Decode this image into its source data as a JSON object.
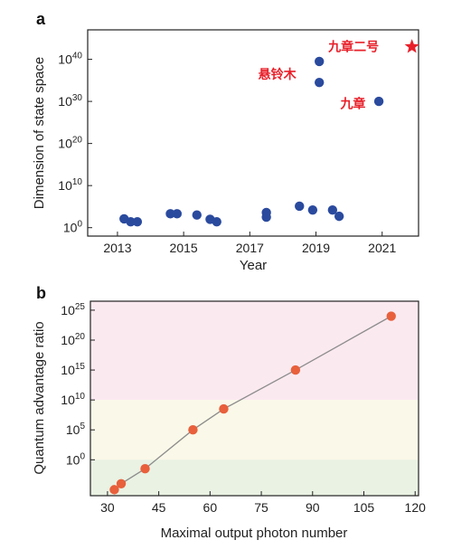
{
  "chart_data": [
    {
      "type": "scatter",
      "panel_label": "a",
      "title": "",
      "xlabel": "Year",
      "ylabel": "Dimension of state space",
      "ylog": true,
      "xlim": [
        2012.1,
        2022.1
      ],
      "ylim_exponent": [
        -2,
        47
      ],
      "xticks": [
        2013,
        2015,
        2017,
        2019,
        2021
      ],
      "yticks": [
        {
          "exp": 0,
          "label": "0"
        },
        {
          "exp": 10,
          "label": "10"
        },
        {
          "exp": 20,
          "label": "20"
        },
        {
          "exp": 30,
          "label": "30"
        },
        {
          "exp": 40,
          "label": "40"
        }
      ],
      "ytick_base": "10",
      "grid": false,
      "marker_color": "#2a4a9e",
      "points_log10": [
        [
          2013.2,
          2.1
        ],
        [
          2013.4,
          1.4
        ],
        [
          2013.6,
          1.4
        ],
        [
          2014.6,
          3.3
        ],
        [
          2014.8,
          3.3
        ],
        [
          2015.4,
          3.0
        ],
        [
          2015.8,
          2.0
        ],
        [
          2016.0,
          1.4
        ],
        [
          2017.5,
          2.5
        ],
        [
          2017.5,
          3.6
        ],
        [
          2018.5,
          5.1
        ],
        [
          2018.9,
          4.2
        ],
        [
          2019.1,
          39.5
        ],
        [
          2019.1,
          34.5
        ],
        [
          2019.5,
          4.2
        ],
        [
          2019.7,
          2.7
        ],
        [
          2020.9,
          30.0
        ]
      ],
      "star": {
        "x": 2021.9,
        "y_log10": 43.0,
        "color": "#e8202a"
      },
      "annotations": [
        {
          "text": "九章二号",
          "x": 2020.9,
          "y_log10": 43.0
        },
        {
          "text": "九章",
          "x": 2020.5,
          "y_log10": 29.5
        },
        {
          "text": "悬铃木",
          "x": 2018.4,
          "y_log10": 36.5
        }
      ]
    },
    {
      "type": "line",
      "panel_label": "b",
      "title": "",
      "xlabel": "Maximal output photon number",
      "ylabel": "Quantum advantage ratio",
      "ylog": true,
      "xlim": [
        25,
        121
      ],
      "ylim_exponent": [
        -6,
        26.5
      ],
      "xticks": [
        30,
        45,
        60,
        75,
        90,
        105,
        120
      ],
      "yticks": [
        {
          "exp": 0,
          "label": "0"
        },
        {
          "exp": 5,
          "label": "5"
        },
        {
          "exp": 10,
          "label": "10"
        },
        {
          "exp": 15,
          "label": "15"
        },
        {
          "exp": 20,
          "label": "20"
        },
        {
          "exp": 25,
          "label": "25"
        }
      ],
      "ytick_base": "10",
      "grid": false,
      "marker_color": "#e8603c",
      "line_color": "#8c8c8c",
      "points_log10": [
        [
          32,
          -5.0
        ],
        [
          34,
          -4.0
        ],
        [
          41,
          -1.5
        ],
        [
          55,
          5.0
        ],
        [
          64,
          8.5
        ],
        [
          85,
          15.0
        ],
        [
          113,
          24.0
        ]
      ],
      "bands": [
        {
          "from_exp": 10,
          "to_exp": 26.5,
          "color": "#fbe9f0"
        },
        {
          "from_exp": 0,
          "to_exp": 10,
          "color": "#faf8e8"
        },
        {
          "from_exp": -6,
          "to_exp": 0,
          "color": "#e9f2e3"
        }
      ]
    }
  ]
}
